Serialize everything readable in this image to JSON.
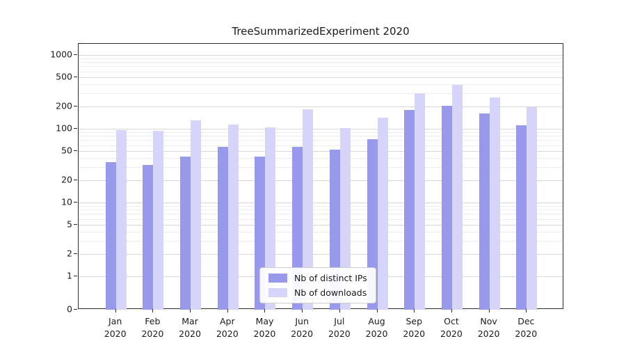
{
  "chart_data": {
    "type": "bar",
    "title": "TreeSummarizedExperiment 2020",
    "categories": [
      "Jan",
      "Feb",
      "Mar",
      "Apr",
      "May",
      "Jun",
      "Jul",
      "Aug",
      "Sep",
      "Oct",
      "Nov",
      "Dec"
    ],
    "x_year_label": "2020",
    "series": [
      {
        "name": "Nb of distinct IPs",
        "color": "#9999ec",
        "values": [
          35,
          32,
          42,
          57,
          42,
          57,
          52,
          72,
          180,
          205,
          160,
          112
        ]
      },
      {
        "name": "Nb of downloads",
        "color": "#d6d4f8",
        "values": [
          96,
          93,
          130,
          113,
          104,
          183,
          103,
          142,
          300,
          390,
          268,
          196
        ]
      }
    ],
    "y_scale": "symlog",
    "y_ticks": [
      0,
      1,
      2,
      5,
      10,
      20,
      50,
      100,
      200,
      500,
      1000
    ],
    "ylim": [
      0,
      1400
    ],
    "grid": true,
    "legend_position": "lower-center-inside"
  }
}
